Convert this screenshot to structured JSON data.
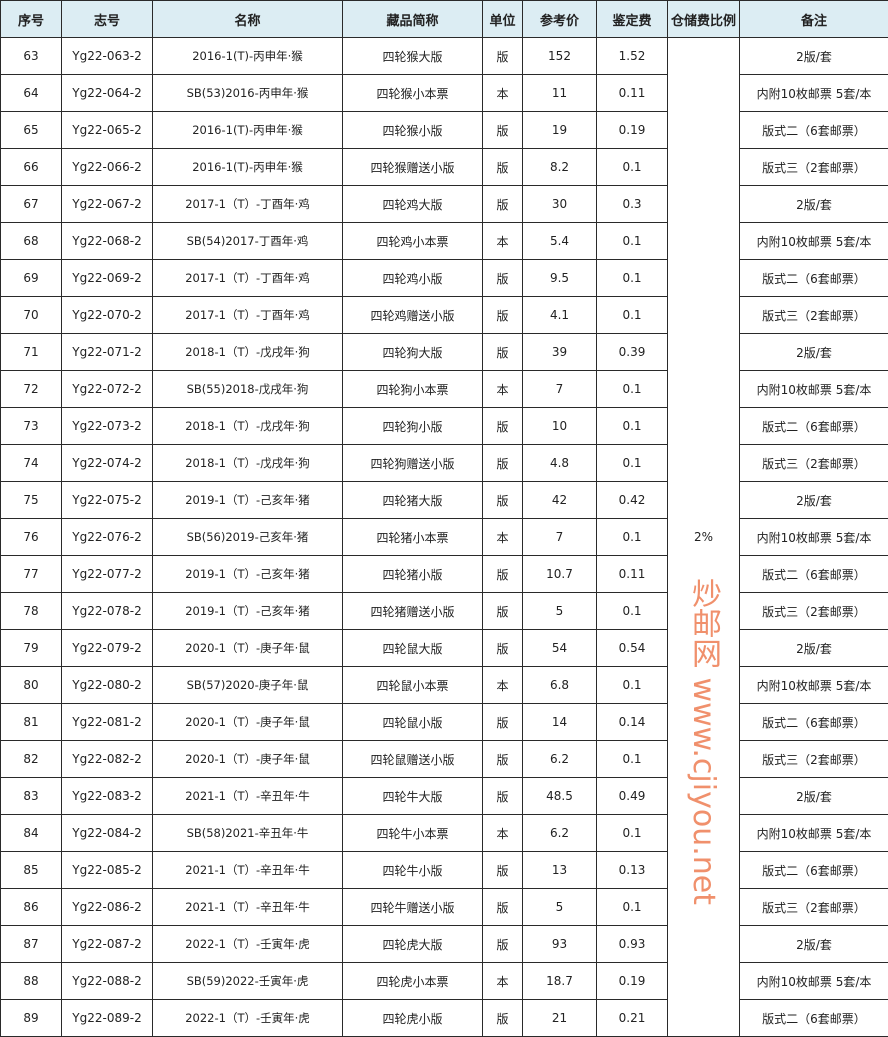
{
  "headers": [
    "序号",
    "志号",
    "名称",
    "藏品简称",
    "单位",
    "参考价",
    "鉴定费",
    "仓储费比例",
    "备注"
  ],
  "storage_ratio": "2%",
  "watermark": "炒邮网 www.cjiyou.net",
  "rows": [
    [
      "63",
      "Yg22-063-2",
      "2016-1(T)-丙申年·猴",
      "四轮猴大版",
      "版",
      "152",
      "1.52",
      "2版/套"
    ],
    [
      "64",
      "Yg22-064-2",
      "SB(53)2016-丙申年·猴",
      "四轮猴小本票",
      "本",
      "11",
      "0.11",
      "内附10枚邮票  5套/本"
    ],
    [
      "65",
      "Yg22-065-2",
      "2016-1(T)-丙申年·猴",
      "四轮猴小版",
      "版",
      "19",
      "0.19",
      "版式二（6套邮票）"
    ],
    [
      "66",
      "Yg22-066-2",
      "2016-1(T)-丙申年·猴",
      "四轮猴赠送小版",
      "版",
      "8.2",
      "0.1",
      "版式三（2套邮票）"
    ],
    [
      "67",
      "Yg22-067-2",
      "2017-1（T）-丁酉年·鸡",
      "四轮鸡大版",
      "版",
      "30",
      "0.3",
      "2版/套"
    ],
    [
      "68",
      "Yg22-068-2",
      "SB(54)2017-丁酉年·鸡",
      "四轮鸡小本票",
      "本",
      "5.4",
      "0.1",
      "内附10枚邮票  5套/本"
    ],
    [
      "69",
      "Yg22-069-2",
      "2017-1（T）-丁酉年·鸡",
      "四轮鸡小版",
      "版",
      "9.5",
      "0.1",
      "版式二（6套邮票）"
    ],
    [
      "70",
      "Yg22-070-2",
      "2017-1（T）-丁酉年·鸡",
      "四轮鸡赠送小版",
      "版",
      "4.1",
      "0.1",
      "版式三（2套邮票）"
    ],
    [
      "71",
      "Yg22-071-2",
      "2018-1（T）-戊戌年·狗",
      "四轮狗大版",
      "版",
      "39",
      "0.39",
      "2版/套"
    ],
    [
      "72",
      "Yg22-072-2",
      "SB(55)2018-戊戌年·狗",
      "四轮狗小本票",
      "本",
      "7",
      "0.1",
      "内附10枚邮票  5套/本"
    ],
    [
      "73",
      "Yg22-073-2",
      "2018-1（T）-戊戌年·狗",
      "四轮狗小版",
      "版",
      "10",
      "0.1",
      "版式二（6套邮票）"
    ],
    [
      "74",
      "Yg22-074-2",
      "2018-1（T）-戊戌年·狗",
      "四轮狗赠送小版",
      "版",
      "4.8",
      "0.1",
      "版式三（2套邮票）"
    ],
    [
      "75",
      "Yg22-075-2",
      "2019-1（T）-己亥年·猪",
      "四轮猪大版",
      "版",
      "42",
      "0.42",
      "2版/套"
    ],
    [
      "76",
      "Yg22-076-2",
      "SB(56)2019-己亥年·猪",
      "四轮猪小本票",
      "本",
      "7",
      "0.1",
      "内附10枚邮票  5套/本"
    ],
    [
      "77",
      "Yg22-077-2",
      "2019-1（T）-己亥年·猪",
      "四轮猪小版",
      "版",
      "10.7",
      "0.11",
      "版式二（6套邮票）"
    ],
    [
      "78",
      "Yg22-078-2",
      "2019-1（T）-己亥年·猪",
      "四轮猪赠送小版",
      "版",
      "5",
      "0.1",
      "版式三（2套邮票）"
    ],
    [
      "79",
      "Yg22-079-2",
      "2020-1（T）-庚子年·鼠",
      "四轮鼠大版",
      "版",
      "54",
      "0.54",
      "2版/套"
    ],
    [
      "80",
      "Yg22-080-2",
      "SB(57)2020-庚子年·鼠",
      "四轮鼠小本票",
      "本",
      "6.8",
      "0.1",
      "内附10枚邮票  5套/本"
    ],
    [
      "81",
      "Yg22-081-2",
      "2020-1（T）-庚子年·鼠",
      "四轮鼠小版",
      "版",
      "14",
      "0.14",
      "版式二（6套邮票）"
    ],
    [
      "82",
      "Yg22-082-2",
      "2020-1（T）-庚子年·鼠",
      "四轮鼠赠送小版",
      "版",
      "6.2",
      "0.1",
      "版式三（2套邮票）"
    ],
    [
      "83",
      "Yg22-083-2",
      "2021-1（T）-辛丑年·牛",
      "四轮牛大版",
      "版",
      "48.5",
      "0.49",
      "2版/套"
    ],
    [
      "84",
      "Yg22-084-2",
      "SB(58)2021-辛丑年·牛",
      "四轮牛小本票",
      "本",
      "6.2",
      "0.1",
      "内附10枚邮票  5套/本"
    ],
    [
      "85",
      "Yg22-085-2",
      "2021-1（T）-辛丑年·牛",
      "四轮牛小版",
      "版",
      "13",
      "0.13",
      "版式二（6套邮票）"
    ],
    [
      "86",
      "Yg22-086-2",
      "2021-1（T）-辛丑年·牛",
      "四轮牛赠送小版",
      "版",
      "5",
      "0.1",
      "版式三（2套邮票）"
    ],
    [
      "87",
      "Yg22-087-2",
      "2022-1（T）-壬寅年·虎",
      "四轮虎大版",
      "版",
      "93",
      "0.93",
      "2版/套"
    ],
    [
      "88",
      "Yg22-088-2",
      "SB(59)2022-壬寅年·虎",
      "四轮虎小本票",
      "本",
      "18.7",
      "0.19",
      "内附10枚邮票  5套/本"
    ],
    [
      "89",
      "Yg22-089-2",
      "2022-1（T）-壬寅年·虎",
      "四轮虎小版",
      "版",
      "21",
      "0.21",
      "版式二（6套邮票）"
    ]
  ]
}
